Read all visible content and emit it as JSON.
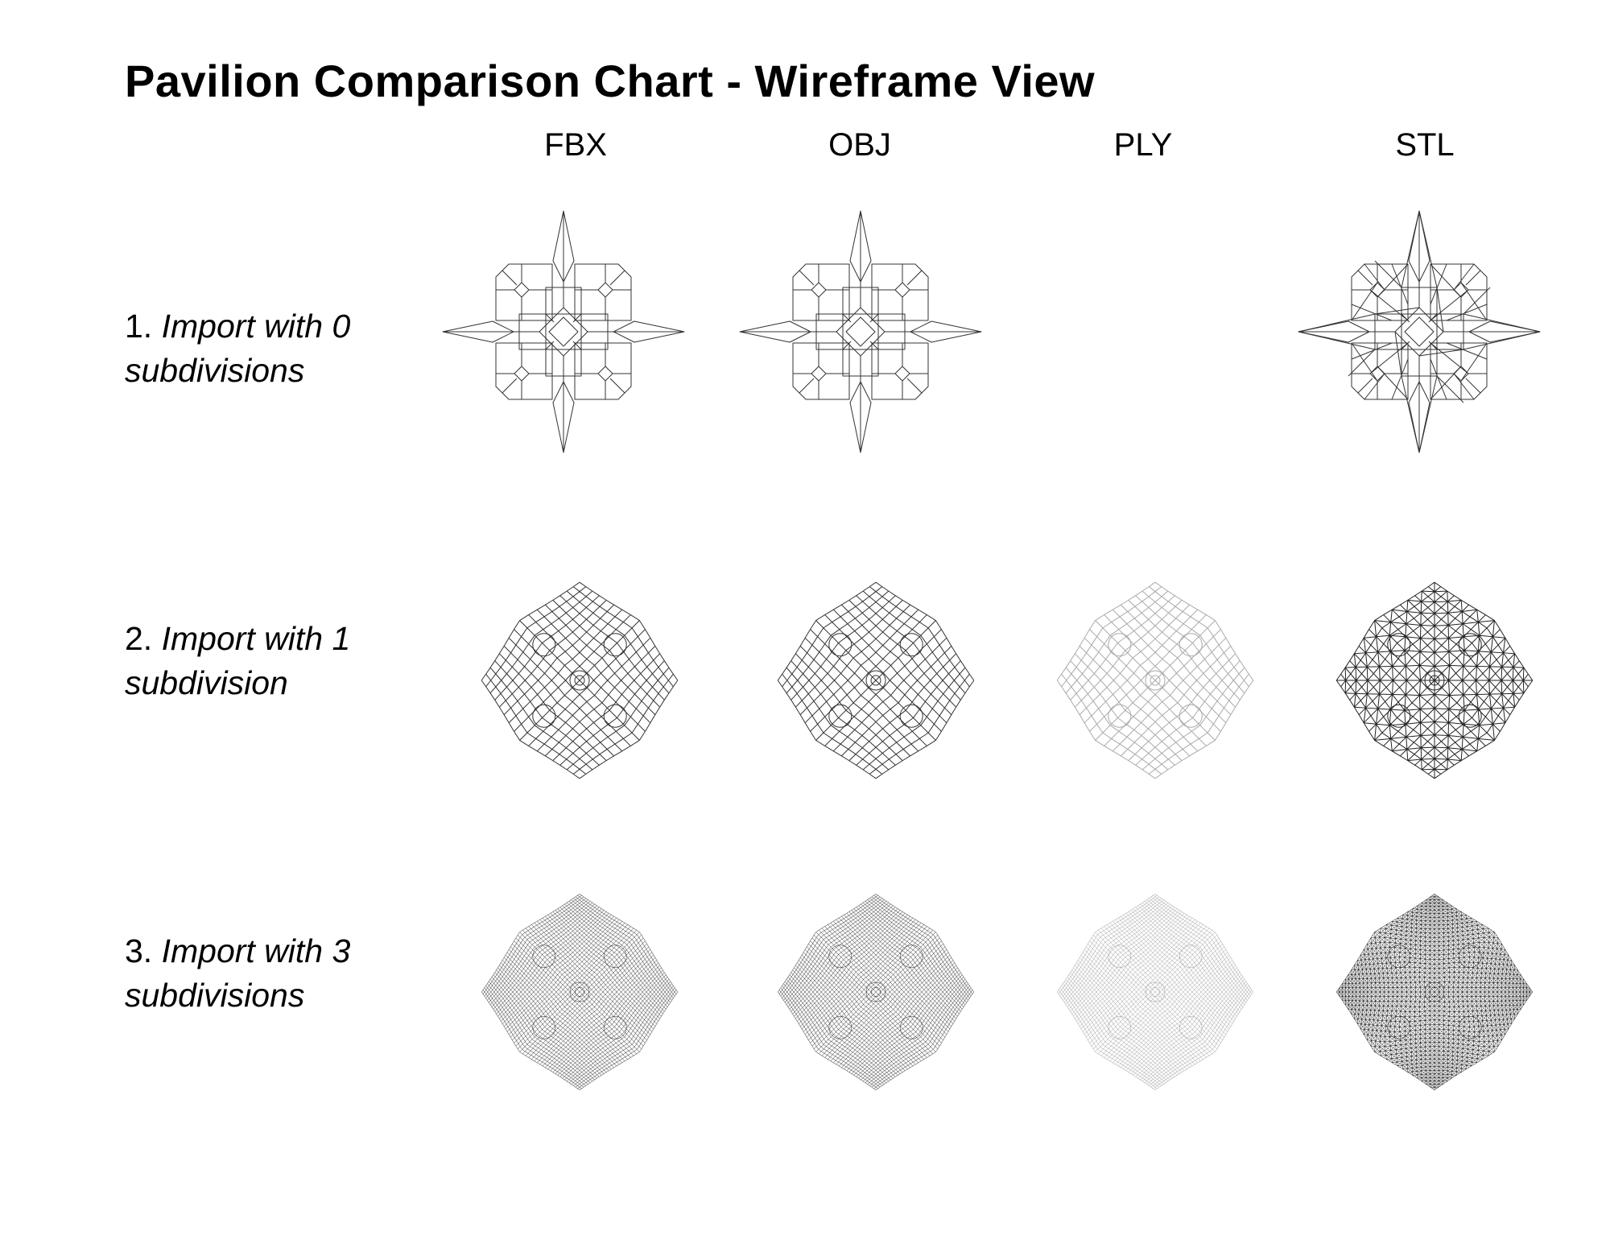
{
  "title": "Pavilion Comparison Chart - Wireframe View",
  "columns": [
    "FBX",
    "OBJ",
    "PLY",
    "STL"
  ],
  "rows": [
    {
      "number": "1.",
      "text": "Import with 0 subdivisions",
      "text_line1": "Import with 0",
      "text_line2": "subdivisions",
      "subdivisions": 0
    },
    {
      "number": "2.",
      "text": "Import with 1 subdivision",
      "text_line1": "Import with 1",
      "text_line2": "subdivision",
      "subdivisions": 1
    },
    {
      "number": "3.",
      "text": "Import with 3 subdivisions",
      "text_line1": "Import with 3",
      "text_line2": "subdivisions",
      "subdivisions": 3
    }
  ],
  "cells": [
    [
      {
        "format": "FBX",
        "mesh": "quad",
        "present": true,
        "tone": "#333333"
      },
      {
        "format": "OBJ",
        "mesh": "quad",
        "present": true,
        "tone": "#333333"
      },
      {
        "format": "PLY",
        "mesh": "none",
        "present": false,
        "tone": "#ffffff"
      },
      {
        "format": "STL",
        "mesh": "triangulated",
        "present": true,
        "tone": "#333333"
      }
    ],
    [
      {
        "format": "FBX",
        "mesh": "quad",
        "present": true,
        "tone": "#333333"
      },
      {
        "format": "OBJ",
        "mesh": "quad",
        "present": true,
        "tone": "#333333"
      },
      {
        "format": "PLY",
        "mesh": "quad",
        "present": true,
        "tone": "#aaaaaa"
      },
      {
        "format": "STL",
        "mesh": "triangulated",
        "present": true,
        "tone": "#222222"
      }
    ],
    [
      {
        "format": "FBX",
        "mesh": "quad-dense",
        "present": true,
        "tone": "#222222"
      },
      {
        "format": "OBJ",
        "mesh": "quad-dense",
        "present": true,
        "tone": "#222222"
      },
      {
        "format": "PLY",
        "mesh": "quad-dense",
        "present": true,
        "tone": "#999999"
      },
      {
        "format": "STL",
        "mesh": "triangulated-dense",
        "present": true,
        "tone": "#111111"
      }
    ]
  ]
}
